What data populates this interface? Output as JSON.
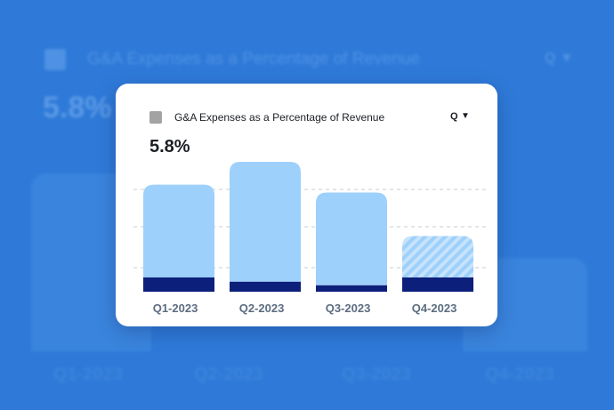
{
  "card": {
    "title": "G&A Expenses as a Percentage of Revenue",
    "headline_value": "5.8%"
  },
  "icons": {
    "search": "search-icon",
    "chevron": "chevron-down-icon",
    "legend": "legend-square"
  },
  "colors": {
    "background": "#2f7ad8",
    "bar_light": "#9dd0fb",
    "bar_dark": "#0c1f7b",
    "forecast_stripe": "#c7e3fc",
    "gridline": "#c9cdd3"
  },
  "chart_data": {
    "type": "bar",
    "categories": [
      "Q1-2023",
      "Q2-2023",
      "Q3-2023",
      "Q4-2023"
    ],
    "series": [
      {
        "values": [
          2.0,
          1.4,
          0.9,
          2.0
        ]
      },
      {
        "values": [
          13.0,
          16.8,
          13.0,
          5.8
        ]
      }
    ],
    "stacked": true,
    "forecast_index": 3,
    "ylim": [
      0,
      18.7
    ],
    "grid": true
  }
}
